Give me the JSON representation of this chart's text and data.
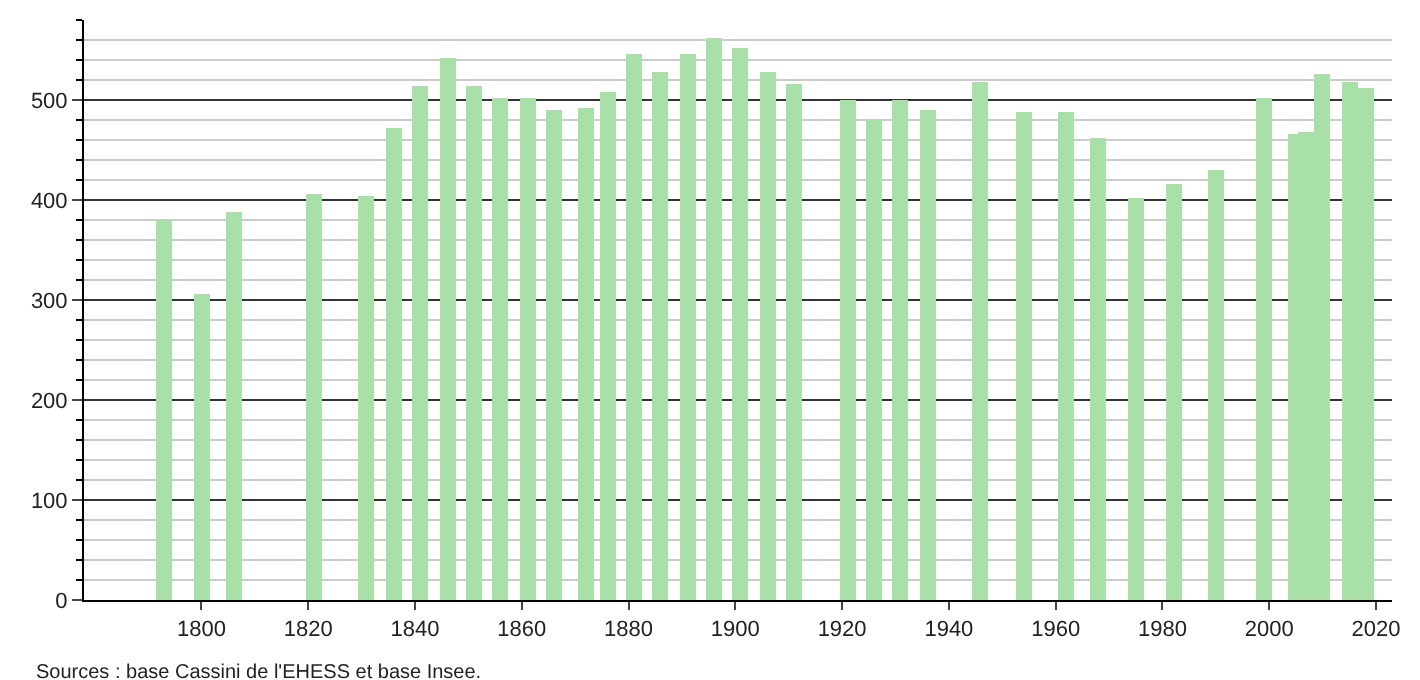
{
  "chart_data": {
    "type": "bar",
    "x": [
      1793,
      1800,
      1806,
      1821,
      1831,
      1836,
      1841,
      1846,
      1851,
      1856,
      1861,
      1866,
      1872,
      1876,
      1881,
      1886,
      1891,
      1896,
      1901,
      1906,
      1911,
      1921,
      1926,
      1931,
      1936,
      1946,
      1954,
      1962,
      1968,
      1975,
      1982,
      1990,
      1999,
      2005,
      2007,
      2010,
      2015,
      2018
    ],
    "values": [
      380,
      307,
      388,
      406,
      404,
      473,
      515,
      542,
      515,
      502,
      502,
      490,
      492,
      508,
      546,
      529,
      546,
      562,
      552,
      528,
      516,
      500,
      480,
      500,
      490,
      519,
      488,
      488,
      462,
      402,
      416,
      430,
      503,
      466,
      468,
      526,
      519,
      513
    ],
    "color": "#a8e0a8",
    "xlim": [
      1778,
      2023
    ],
    "xticks": [
      1800,
      1820,
      1840,
      1860,
      1880,
      1900,
      1920,
      1940,
      1960,
      1980,
      2000,
      2020
    ],
    "ylim": [
      0,
      580
    ],
    "yticks": [
      0,
      100,
      200,
      300,
      400,
      500
    ],
    "grid": "y",
    "annotations": [
      "Sources : base Cassini de l'EHESS et base Insee."
    ]
  }
}
